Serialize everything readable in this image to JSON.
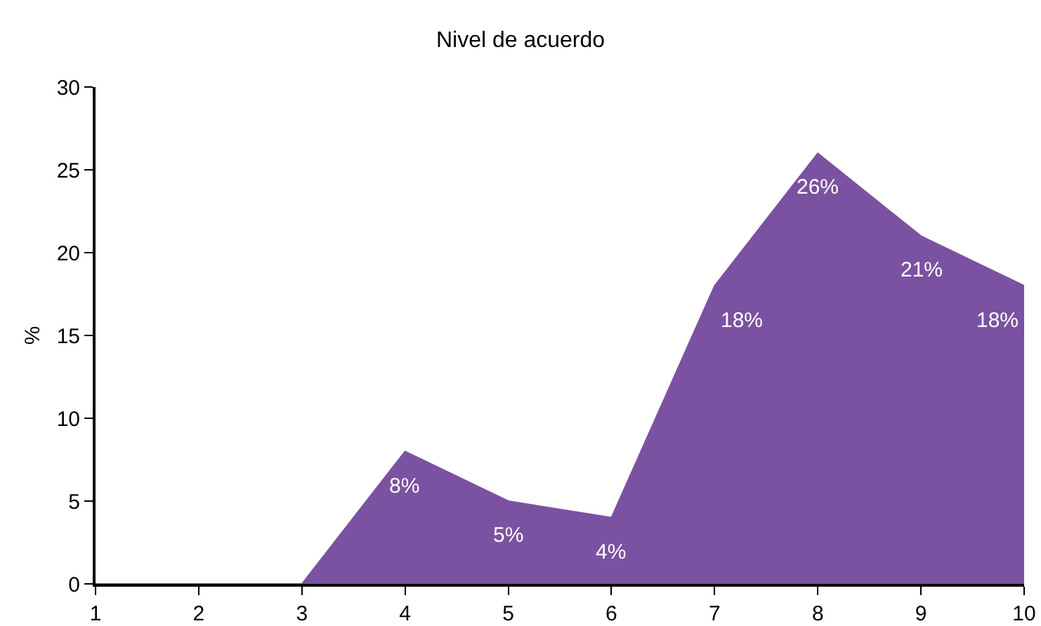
{
  "chart_data": {
    "type": "area",
    "title": "Nivel de acuerdo",
    "ylabel": "%",
    "x": [
      1,
      2,
      3,
      4,
      5,
      6,
      7,
      8,
      9,
      10
    ],
    "values": [
      0,
      0,
      0,
      8,
      5,
      4,
      18,
      26,
      21,
      18
    ],
    "value_labels": [
      null,
      null,
      null,
      "8%",
      "5%",
      "4%",
      "18%",
      "26%",
      "21%",
      "18%"
    ],
    "color": "#7b52a1",
    "xlim": [
      1,
      10
    ],
    "xticks": [
      1,
      2,
      3,
      4,
      5,
      6,
      7,
      8,
      9,
      10
    ],
    "ylim": [
      0,
      30
    ],
    "yticks": [
      0,
      5,
      10,
      15,
      20,
      25,
      30
    ],
    "grid": false,
    "marker": "none"
  }
}
